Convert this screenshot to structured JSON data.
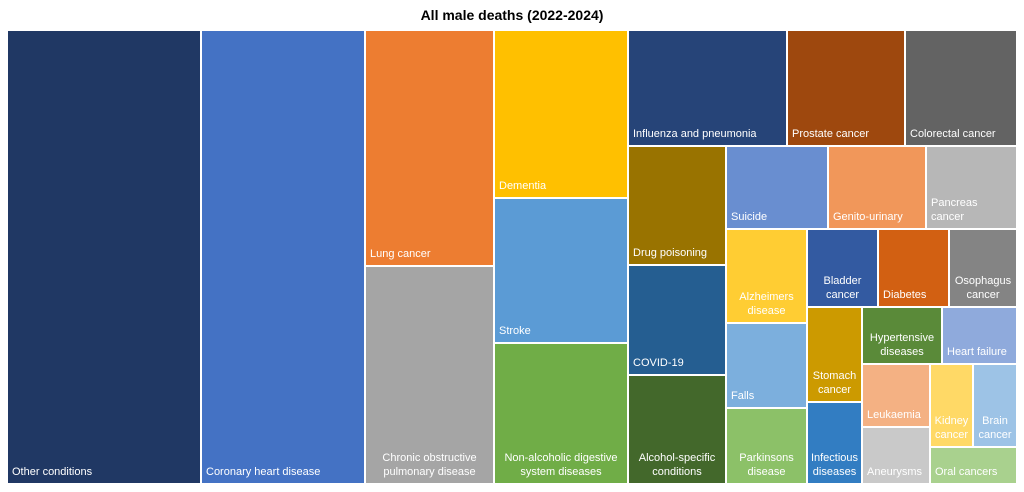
{
  "chart_data": {
    "type": "treemap",
    "title": "All male deaths (2022-2024)",
    "value_unit": "approximate share of area (%)",
    "items": [
      {
        "label": "Other conditions",
        "value": 19.1,
        "color": "#203864"
      },
      {
        "label": "Coronary heart disease",
        "value": 16.1,
        "color": "#4472C4"
      },
      {
        "label": "Lung cancer",
        "value": 6.6,
        "color": "#ED7D31"
      },
      {
        "label": "Chronic obstructive\npulmonary disease",
        "value": 6.1,
        "color": "#A5A5A5"
      },
      {
        "label": "Dementia",
        "value": 4.9,
        "color": "#FFC000"
      },
      {
        "label": "Stroke",
        "value": 4.2,
        "color": "#5B9BD5"
      },
      {
        "label": "Non-alcoholic digestive\nsystem diseases",
        "value": 4.1,
        "color": "#70AD47"
      },
      {
        "label": "Influenza and pneumonia",
        "value": 4.0,
        "color": "#264478"
      },
      {
        "label": "Prostate cancer",
        "value": 3.0,
        "color": "#9E480E"
      },
      {
        "label": "Colorectal cancer",
        "value": 2.8,
        "color": "#636363"
      },
      {
        "label": "Drug poisoning",
        "value": 2.5,
        "color": "#997300"
      },
      {
        "label": "COVID-19",
        "value": 2.4,
        "color": "#255E91"
      },
      {
        "label": "Alcohol-specific\nconditions",
        "value": 2.3,
        "color": "#43682B"
      },
      {
        "label": "Suicide",
        "value": 1.8,
        "color": "#698ED0"
      },
      {
        "label": "Genito-urinary",
        "value": 1.8,
        "color": "#F1975A"
      },
      {
        "label": "Pancreas cancer",
        "value": 1.6,
        "color": "#B7B7B7"
      },
      {
        "label": "Alzheimers\ndisease",
        "value": 1.7,
        "color": "#FFCD33"
      },
      {
        "label": "Falls",
        "value": 1.5,
        "color": "#7CAFDD"
      },
      {
        "label": "Parkinsons\ndisease",
        "value": 1.3,
        "color": "#8CC168"
      },
      {
        "label": "Bladder\ncancer",
        "value": 1.2,
        "color": "#335AA1"
      },
      {
        "label": "Diabetes",
        "value": 1.2,
        "color": "#D26012"
      },
      {
        "label": "Osophagus\ncancer",
        "value": 1.2,
        "color": "#848484"
      },
      {
        "label": "Stomach\ncancer",
        "value": 1.1,
        "color": "#CC9A00"
      },
      {
        "label": "Infectious\ndiseases",
        "value": 1.0,
        "color": "#327DC2"
      },
      {
        "label": "Hypertensive\ndiseases",
        "value": 1.0,
        "color": "#5A8A39"
      },
      {
        "label": "Heart failure",
        "value": 0.9,
        "color": "#8FAADC"
      },
      {
        "label": "Leukaemia",
        "value": 0.9,
        "color": "#F4B183"
      },
      {
        "label": "Aneurysms",
        "value": 0.8,
        "color": "#C9C9C9"
      },
      {
        "label": "Kidney\ncancer",
        "value": 0.8,
        "color": "#FFD966"
      },
      {
        "label": "Brain\ncancer",
        "value": 0.8,
        "color": "#9DC3E6"
      },
      {
        "label": "Oral cancers",
        "value": 0.7,
        "color": "#A9D18E"
      }
    ]
  }
}
